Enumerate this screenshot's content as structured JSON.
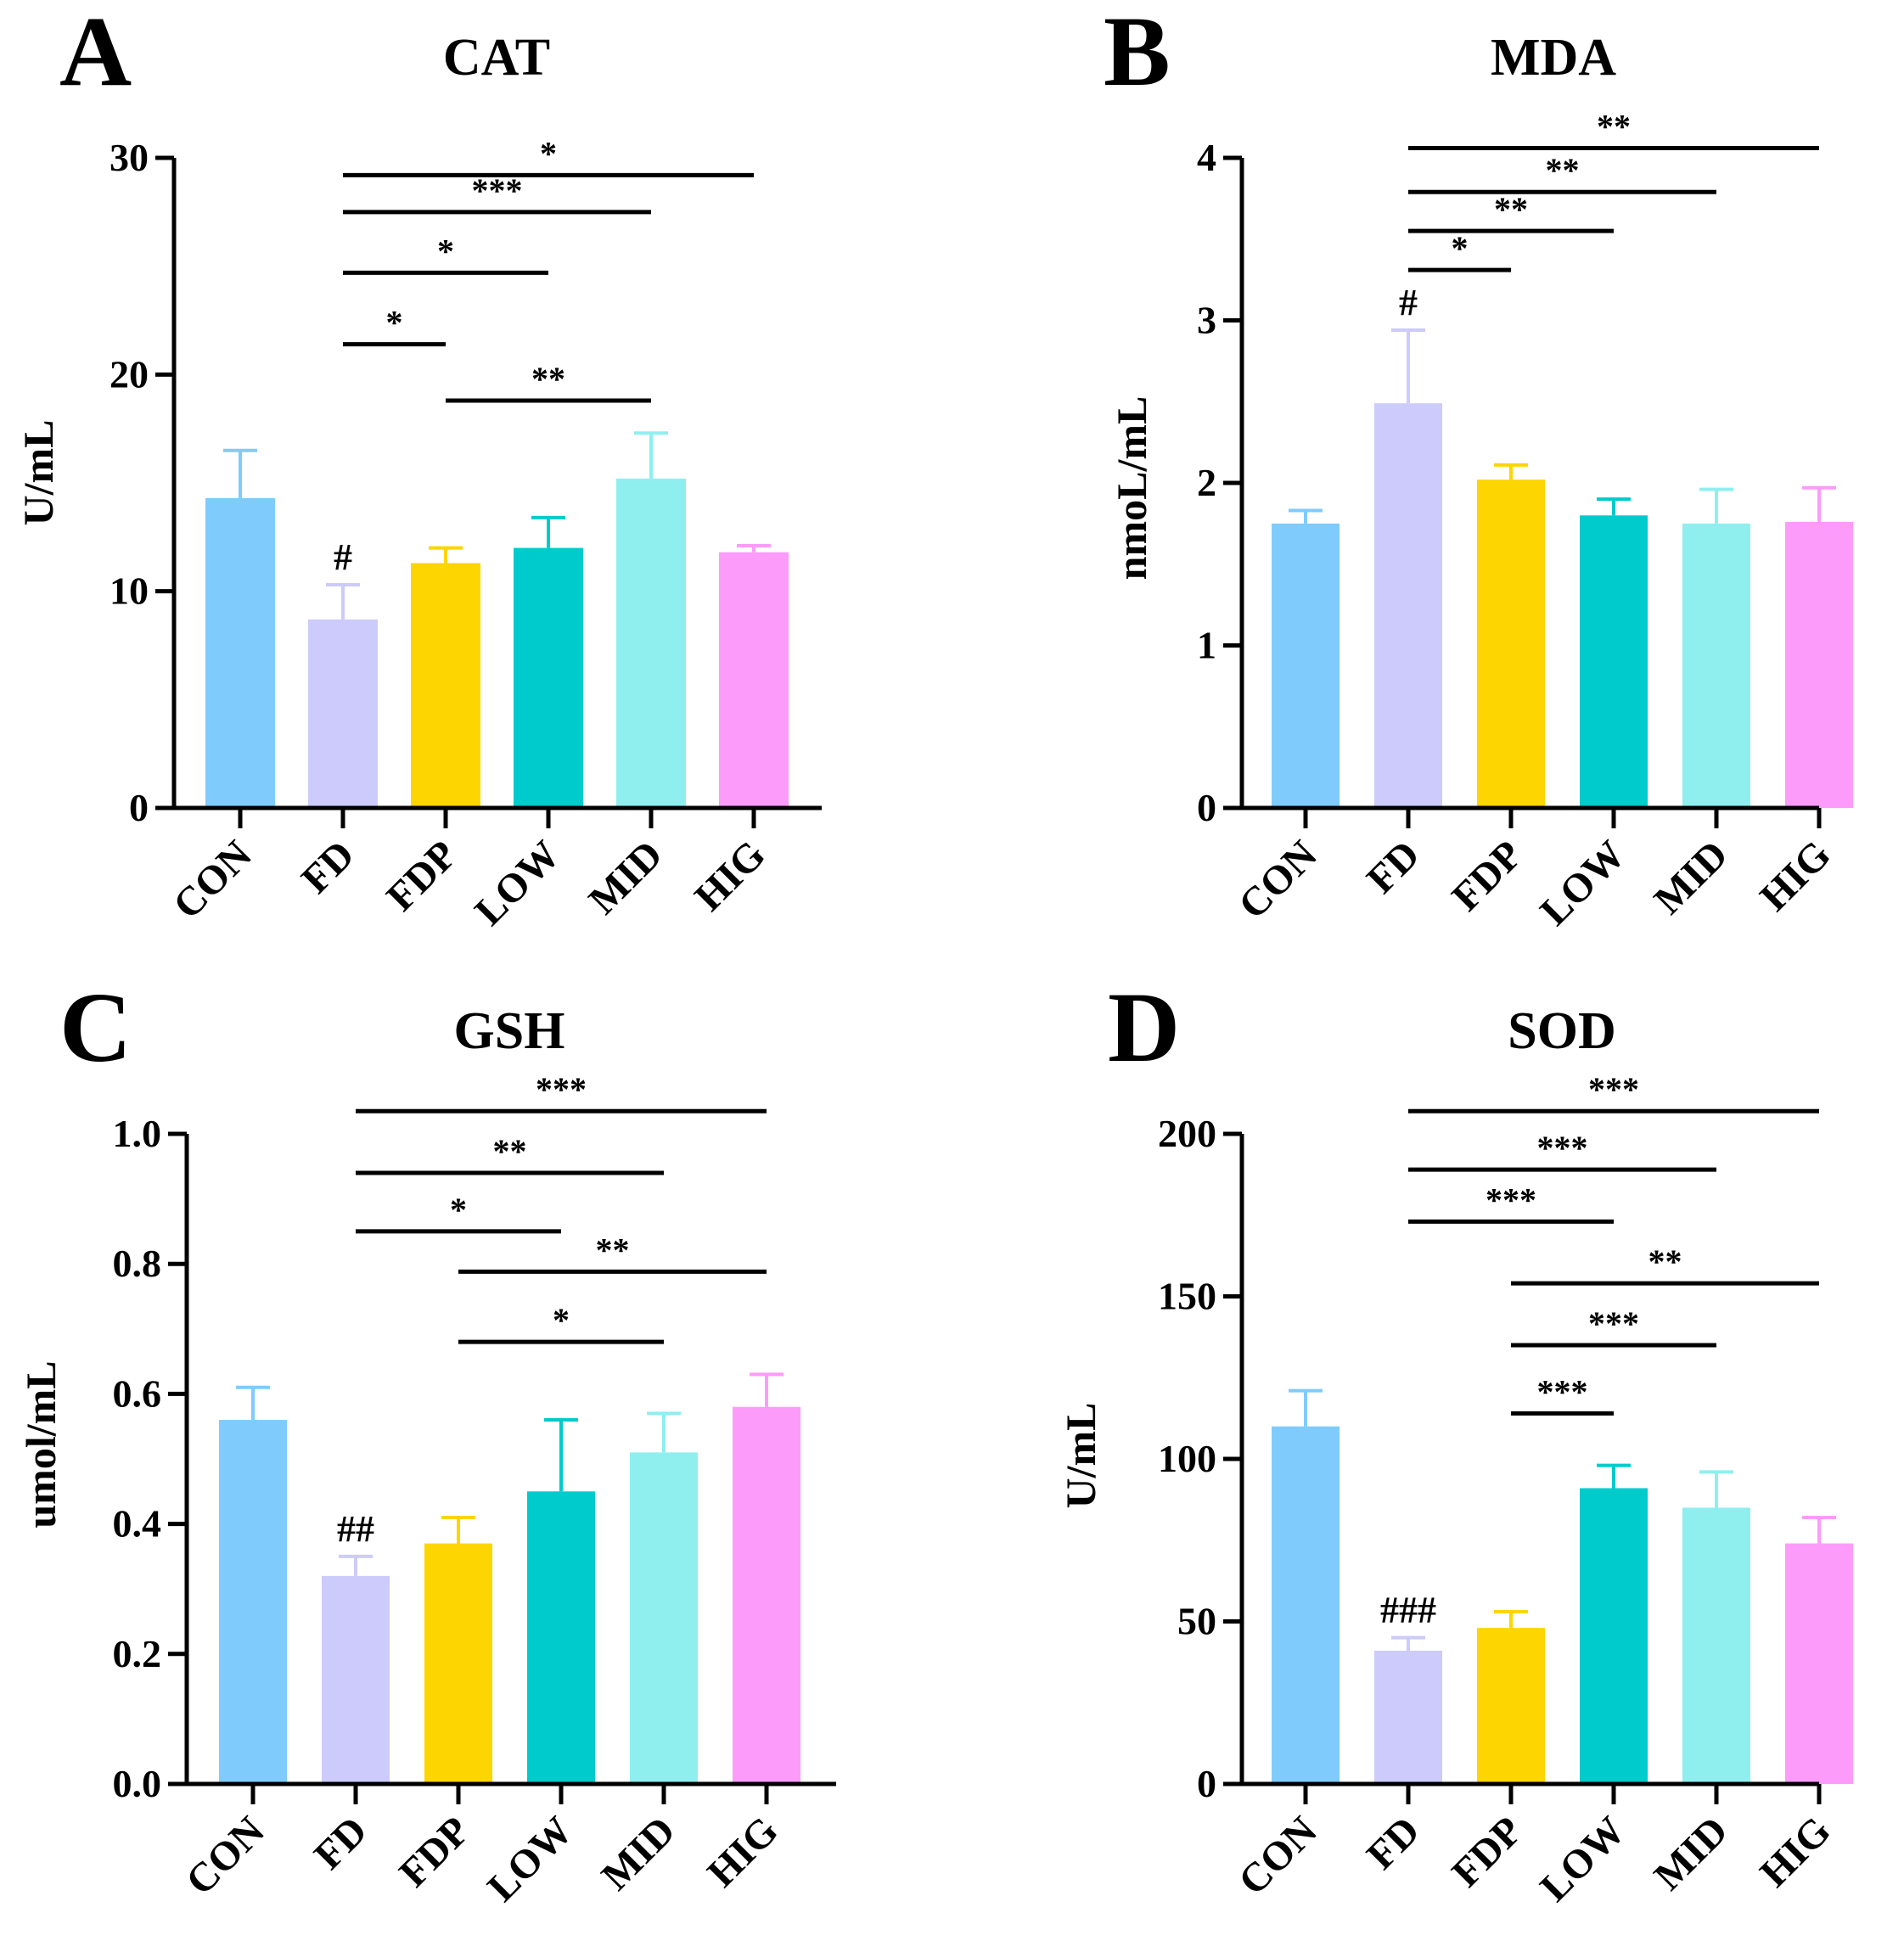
{
  "chart_data": [
    {
      "panel": "A",
      "type": "bar",
      "title": "CAT",
      "ylabel": "U/mL",
      "xlabel": "",
      "ylim": [
        0,
        30
      ],
      "yticks": [
        0,
        10,
        20,
        30
      ],
      "categories": [
        "CON",
        "FD",
        "FDP",
        "LOW",
        "MID",
        "HIG"
      ],
      "values": [
        14.3,
        8.7,
        11.3,
        12.0,
        15.2,
        11.8
      ],
      "errors": [
        2.2,
        1.6,
        0.7,
        1.4,
        2.1,
        0.3
      ],
      "colors": [
        "#7fccfc",
        "#cccbfb",
        "#fdd500",
        "#00cbcc",
        "#8fefef",
        "#fd9bfa"
      ],
      "markers": [
        {
          "category": "FD",
          "text": "#"
        }
      ],
      "comparisons": [
        {
          "from": "FD",
          "to": "HIG",
          "label": "*",
          "y": 29.2
        },
        {
          "from": "FD",
          "to": "MID",
          "label": "***",
          "y": 27.5
        },
        {
          "from": "FD",
          "to": "LOW",
          "label": "*",
          "y": 24.7
        },
        {
          "from": "FD",
          "to": "FDP",
          "label": "*",
          "y": 21.4
        },
        {
          "from": "FDP",
          "to": "MID",
          "label": "**",
          "y": 18.8
        }
      ]
    },
    {
      "panel": "B",
      "type": "bar",
      "title": "MDA",
      "ylabel": "nmoL/mL",
      "xlabel": "",
      "ylim": [
        0,
        4
      ],
      "yticks": [
        0,
        1,
        2,
        3,
        4
      ],
      "categories": [
        "CON",
        "FD",
        "FDP",
        "LOW",
        "MID",
        "HIG"
      ],
      "values": [
        1.75,
        2.49,
        2.02,
        1.8,
        1.75,
        1.76
      ],
      "errors": [
        0.08,
        0.45,
        0.09,
        0.1,
        0.21,
        0.21
      ],
      "colors": [
        "#7fccfc",
        "#cccbfb",
        "#fdd500",
        "#00cbcc",
        "#8fefef",
        "#fd9bfa"
      ],
      "markers": [
        {
          "category": "FD",
          "text": "#"
        }
      ],
      "comparisons": [
        {
          "from": "FD",
          "to": "HIG",
          "label": "**",
          "y": 4.06
        },
        {
          "from": "FD",
          "to": "MID",
          "label": "**",
          "y": 3.79
        },
        {
          "from": "FD",
          "to": "LOW",
          "label": "**",
          "y": 3.55
        },
        {
          "from": "FD",
          "to": "FDP",
          "label": "*",
          "y": 3.31
        }
      ]
    },
    {
      "panel": "C",
      "type": "bar",
      "title": "GSH",
      "ylabel": "umol/mL",
      "xlabel": "",
      "ylim": [
        0,
        1
      ],
      "yticks": [
        "0.0",
        "0.2",
        "0.4",
        "0.6",
        "0.8",
        "1.0"
      ],
      "categories": [
        "CON",
        "FD",
        "FDP",
        "LOW",
        "MID",
        "HIG"
      ],
      "values": [
        0.56,
        0.32,
        0.37,
        0.45,
        0.51,
        0.58
      ],
      "errors": [
        0.05,
        0.03,
        0.04,
        0.11,
        0.06,
        0.05
      ],
      "colors": [
        "#7fccfc",
        "#cccbfb",
        "#fdd500",
        "#00cbcc",
        "#8fefef",
        "#fd9bfa"
      ],
      "markers": [
        {
          "category": "FD",
          "text": "##"
        }
      ],
      "comparisons": [
        {
          "from": "FD",
          "to": "HIG",
          "label": "***",
          "y": 1.035
        },
        {
          "from": "FD",
          "to": "MID",
          "label": "**",
          "y": 0.94
        },
        {
          "from": "FD",
          "to": "LOW",
          "label": "*",
          "y": 0.85
        },
        {
          "from": "FDP",
          "to": "HIG",
          "label": "**",
          "y": 0.788
        },
        {
          "from": "FDP",
          "to": "MID",
          "label": "*",
          "y": 0.68
        }
      ]
    },
    {
      "panel": "D",
      "type": "bar",
      "title": "SOD",
      "ylabel": "U/mL",
      "xlabel": "",
      "ylim": [
        0,
        200
      ],
      "yticks": [
        0,
        50,
        100,
        150,
        200
      ],
      "categories": [
        "CON",
        "FD",
        "FDP",
        "LOW",
        "MID",
        "HIG"
      ],
      "values": [
        110,
        41,
        48,
        91,
        85,
        74
      ],
      "errors": [
        11,
        4,
        5,
        7,
        11,
        8
      ],
      "colors": [
        "#7fccfc",
        "#cccbfb",
        "#fdd500",
        "#00cbcc",
        "#8fefef",
        "#fd9bfa"
      ],
      "markers": [
        {
          "category": "FD",
          "text": "###"
        }
      ],
      "comparisons": [
        {
          "from": "FD",
          "to": "HIG",
          "label": "***",
          "y": 207
        },
        {
          "from": "FD",
          "to": "MID",
          "label": "***",
          "y": 189
        },
        {
          "from": "FD",
          "to": "LOW",
          "label": "***",
          "y": 173
        },
        {
          "from": "FDP",
          "to": "HIG",
          "label": "**",
          "y": 154
        },
        {
          "from": "FDP",
          "to": "MID",
          "label": "***",
          "y": 135
        },
        {
          "from": "FDP",
          "to": "LOW",
          "label": "***",
          "y": 114
        }
      ]
    }
  ]
}
